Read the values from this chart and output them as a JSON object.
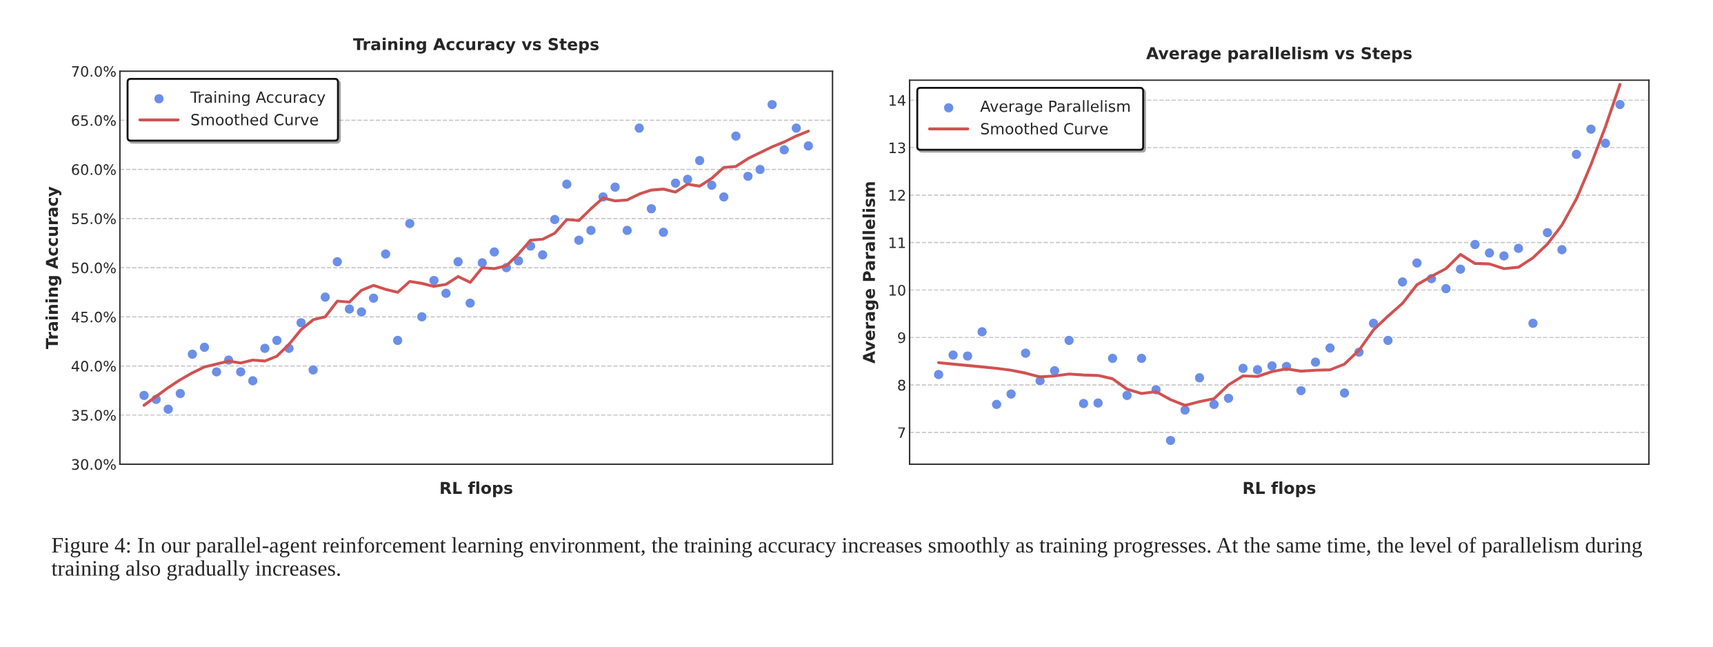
{
  "chart_data": [
    {
      "type": "scatter",
      "title": "Training Accuracy vs Steps",
      "xlabel": "RL flops",
      "ylabel": "Training Accuracy",
      "categories": [
        null,
        null,
        null,
        null,
        null,
        null,
        null,
        null,
        null,
        null,
        null,
        null,
        null,
        null,
        null,
        null,
        null,
        null,
        null,
        null,
        null,
        null,
        null,
        null,
        null,
        null,
        null,
        null,
        null,
        null,
        null,
        null,
        null,
        null,
        null,
        null,
        null,
        null,
        null,
        null,
        null,
        null,
        null,
        null,
        null,
        null,
        null,
        null,
        null,
        null,
        null,
        null,
        null,
        null,
        null,
        null
      ],
      "ylim": [
        30,
        70
      ],
      "yticks": [
        {
          "value": 30,
          "label": "30.0%"
        },
        {
          "value": 35,
          "label": "35.0%"
        },
        {
          "value": 40,
          "label": "40.0%"
        },
        {
          "value": 45,
          "label": "45.0%"
        },
        {
          "value": 50,
          "label": "50.0%"
        },
        {
          "value": 55,
          "label": "55.0%"
        },
        {
          "value": 60,
          "label": "60.0%"
        },
        {
          "value": 65,
          "label": "65.0%"
        },
        {
          "value": 70,
          "label": "70.0%"
        }
      ],
      "tick_labels": "y",
      "grid": "y",
      "legend": "top left",
      "series": [
        {
          "name": "Training Accuracy",
          "marker": "circle",
          "color": "#6b8fe8",
          "values": [
            37.0,
            36.6,
            35.6,
            37.2,
            41.2,
            41.9,
            39.4,
            40.6,
            39.4,
            38.5,
            41.8,
            42.6,
            41.8,
            44.4,
            39.6,
            47.0,
            50.6,
            45.8,
            45.5,
            46.9,
            51.4,
            42.6,
            54.5,
            45.0,
            48.7,
            47.4,
            50.6,
            46.4,
            50.5,
            51.6,
            50.0,
            50.7,
            52.2,
            51.3,
            54.9,
            58.5,
            52.8,
            53.8,
            57.2,
            58.2,
            53.8,
            64.2,
            56.0,
            53.6,
            58.6,
            59.0,
            60.9,
            58.4,
            57.2,
            63.4,
            59.3,
            60.0,
            66.6,
            62.0,
            64.2,
            62.4
          ]
        },
        {
          "name": "Smoothed Curve",
          "type": "line",
          "line_style": "solid",
          "color": "#d05252",
          "values": [
            36.0,
            36.9,
            37.8,
            38.6,
            39.3,
            39.9,
            40.2,
            40.5,
            40.3,
            40.6,
            40.5,
            41.0,
            42.2,
            43.7,
            44.7,
            45.0,
            46.6,
            46.5,
            47.7,
            48.2,
            47.8,
            47.5,
            48.6,
            48.4,
            48.1,
            48.3,
            49.1,
            48.5,
            50.0,
            49.9,
            50.2,
            51.4,
            52.8,
            52.9,
            53.5,
            54.9,
            54.8,
            56.0,
            57.1,
            56.8,
            56.9,
            57.5,
            57.9,
            58.0,
            57.7,
            58.5,
            58.3,
            59.1,
            60.2,
            60.3,
            61.1,
            61.7,
            62.3,
            62.8,
            63.4,
            63.9
          ]
        }
      ]
    },
    {
      "type": "scatter",
      "title": "Average parallelism vs Steps",
      "xlabel": "RL flops",
      "ylabel": "Average Parallelism",
      "categories": [
        null,
        null,
        null,
        null,
        null,
        null,
        null,
        null,
        null,
        null,
        null,
        null,
        null,
        null,
        null,
        null,
        null,
        null,
        null,
        null,
        null,
        null,
        null,
        null,
        null,
        null,
        null,
        null,
        null,
        null,
        null,
        null,
        null,
        null,
        null,
        null,
        null,
        null,
        null,
        null,
        null,
        null,
        null,
        null,
        null,
        null,
        null,
        null
      ],
      "ylim": [
        6.33,
        14.42
      ],
      "yticks": [
        7,
        8,
        9,
        10,
        11,
        12,
        13,
        14
      ],
      "tick_labels": "y",
      "grid": "y",
      "legend": "top left",
      "series": [
        {
          "name": "Average Parallelism",
          "marker": "circle",
          "color": "#6b8fe8",
          "values": [
            8.22,
            8.63,
            8.61,
            9.12,
            7.59,
            7.81,
            8.67,
            8.09,
            8.3,
            8.94,
            7.61,
            7.62,
            8.56,
            7.78,
            8.56,
            7.9,
            6.83,
            7.47,
            8.15,
            7.59,
            7.72,
            8.35,
            8.32,
            8.4,
            8.39,
            7.88,
            8.48,
            8.78,
            7.83,
            8.69,
            9.3,
            8.94,
            10.17,
            10.57,
            10.24,
            10.03,
            10.44,
            10.96,
            10.78,
            10.72,
            10.88,
            9.3,
            11.21,
            10.85,
            12.86,
            13.39,
            13.09,
            13.91
          ]
        },
        {
          "name": "Smoothed Curve",
          "type": "line",
          "line_style": "solid",
          "color": "#d05252",
          "values": [
            8.47,
            8.44,
            8.41,
            8.38,
            8.35,
            8.31,
            8.25,
            8.17,
            8.19,
            8.23,
            8.21,
            8.2,
            8.13,
            7.91,
            7.82,
            7.86,
            7.69,
            7.57,
            7.65,
            7.71,
            8.0,
            8.19,
            8.18,
            8.28,
            8.34,
            8.29,
            8.31,
            8.32,
            8.44,
            8.73,
            9.16,
            9.45,
            9.72,
            10.11,
            10.29,
            10.45,
            10.75,
            10.56,
            10.55,
            10.45,
            10.48,
            10.68,
            10.97,
            11.37,
            11.92,
            12.64,
            13.44,
            14.33
          ]
        }
      ],
      "annotations": [
        "Figure 4: In our parallel-agent reinforcement learning environment, the training accuracy increases smoothly as training progresses. At the same time, the level of parallelism during training also gradually increases."
      ]
    }
  ]
}
